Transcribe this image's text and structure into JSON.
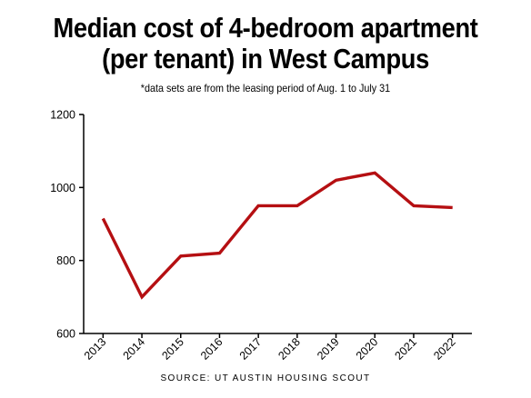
{
  "title_line1": "Median cost of 4-bedroom apartment",
  "title_line2": "(per tenant) in West Campus",
  "subtitle": "*data sets are from the leasing period of Aug. 1 to July 31",
  "source": "SOURCE: UT AUSTIN HOUSING SCOUT",
  "colors": {
    "line": "#b50f12",
    "axis": "#000000"
  },
  "chart_data": {
    "type": "line",
    "title": "Median cost of 4-bedroom apartment (per tenant) in West Campus",
    "xlabel": "",
    "ylabel": "",
    "x": [
      "2013",
      "2014",
      "2015",
      "2016",
      "2017",
      "2018",
      "2019",
      "2020",
      "2021",
      "2022"
    ],
    "series": [
      {
        "values": [
          915,
          700,
          812,
          820,
          950,
          950,
          1020,
          1040,
          950,
          945
        ]
      }
    ],
    "ylim": [
      600,
      1200
    ],
    "yticks": [
      "600",
      "800",
      "1000",
      "1200"
    ],
    "grid": false,
    "legend": "none"
  }
}
